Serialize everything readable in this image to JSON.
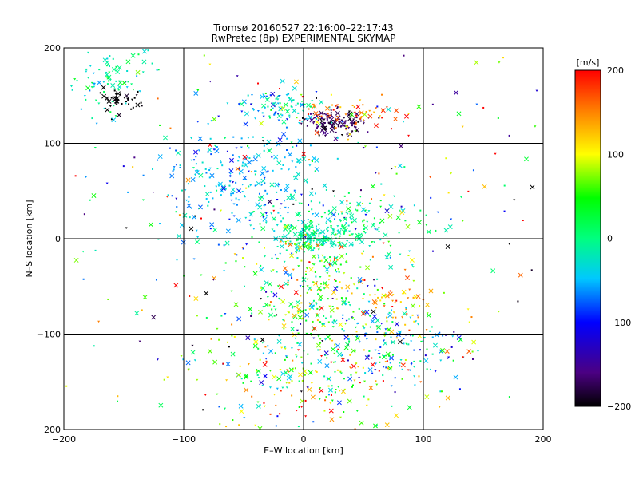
{
  "chart_data": {
    "type": "scatter",
    "title_line1": "Tromsø 20160527 22:16:00–22:17:43",
    "title_line2": "RwPretec (8p) EXPERIMENTAL SKYMAP",
    "xlabel": "E–W location [km]",
    "ylabel": "N–S location [km]",
    "xlim": [
      -200,
      200
    ],
    "ylim": [
      -200,
      200
    ],
    "xticks": [
      -200,
      -100,
      0,
      100,
      200
    ],
    "yticks": [
      -200,
      -100,
      0,
      100,
      200
    ],
    "grid": true,
    "colorbar": {
      "label": "[m/s]",
      "range": [
        -200,
        200
      ],
      "ticks": [
        200,
        100,
        0,
        -100,
        -200
      ]
    },
    "clusters": [
      {
        "x": -160,
        "y": 170,
        "sx": 18,
        "sy": 18,
        "n": 90,
        "v": -10,
        "sv": 30
      },
      {
        "x": -150,
        "y": 145,
        "sx": 8,
        "sy": 6,
        "n": 40,
        "v": -200,
        "sv": 5
      },
      {
        "x": -20,
        "y": 140,
        "sx": 15,
        "sy": 8,
        "n": 90,
        "v": -40,
        "sv": 40
      },
      {
        "x": 25,
        "y": 122,
        "sx": 12,
        "sy": 6,
        "n": 140,
        "v": -175,
        "sv": 15
      },
      {
        "x": 40,
        "y": 130,
        "sx": 20,
        "sy": 10,
        "n": 60,
        "v": 160,
        "sv": 40
      },
      {
        "x": -50,
        "y": 60,
        "sx": 35,
        "sy": 30,
        "n": 250,
        "v": -50,
        "sv": 25
      },
      {
        "x": 30,
        "y": 15,
        "sx": 30,
        "sy": 15,
        "n": 180,
        "v": -5,
        "sv": 25
      },
      {
        "x": 5,
        "y": 0,
        "sx": 12,
        "sy": 6,
        "n": 100,
        "v": -20,
        "sv": 15
      },
      {
        "x": 10,
        "y": -55,
        "sx": 25,
        "sy": 35,
        "n": 300,
        "v": 50,
        "sv": 60
      },
      {
        "x": 80,
        "y": -70,
        "sx": 15,
        "sy": 15,
        "n": 60,
        "v": 130,
        "sv": 30
      },
      {
        "x": 70,
        "y": -110,
        "sx": 30,
        "sy": 20,
        "n": 140,
        "v": -50,
        "sv": 60
      },
      {
        "x": 10,
        "y": -150,
        "sx": 50,
        "sy": 30,
        "n": 200,
        "v": 70,
        "sv": 90
      },
      {
        "x": 0,
        "y": 0,
        "sx": 110,
        "sy": 110,
        "n": 420,
        "v": 0,
        "sv": 120
      }
    ]
  }
}
